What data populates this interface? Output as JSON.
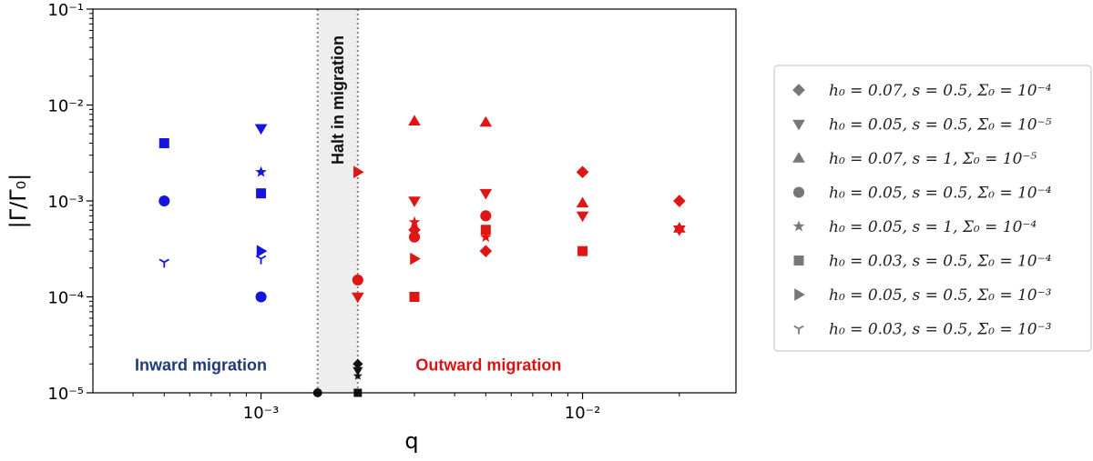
{
  "chart_data": {
    "type": "scatter",
    "xscale": "log",
    "yscale": "log",
    "xlim": [
      0.0003,
      0.03
    ],
    "ylim": [
      1e-05,
      0.1
    ],
    "xlabel": "q",
    "ylabel": "|Γ/Γ₀|",
    "x_ticks": [
      {
        "value": 0.001,
        "label": "10⁻³"
      },
      {
        "value": 0.01,
        "label": "10⁻²"
      }
    ],
    "y_ticks": [
      {
        "value": 1e-05,
        "label": "10⁻⁵"
      },
      {
        "value": 0.0001,
        "label": "10⁻⁴"
      },
      {
        "value": 0.001,
        "label": "10⁻³"
      },
      {
        "value": 0.01,
        "label": "10⁻²"
      },
      {
        "value": 0.1,
        "label": "10⁻¹"
      }
    ],
    "halt_band": {
      "x_from": 0.0015,
      "x_to": 0.002,
      "label": "Halt in migration",
      "color": "#eeeeee"
    },
    "annotations": [
      {
        "text": "Inward migration",
        "x": 0.00065,
        "y": 1.7e-05,
        "color": "#1f3a7a"
      },
      {
        "text": "Outward migration",
        "x": 0.0051,
        "y": 1.7e-05,
        "color": "#dd1111"
      }
    ],
    "colors": {
      "inward": "#1515e0",
      "outward": "#e01515",
      "halt": "#111111",
      "legend_marker": "#777777"
    },
    "legend_position": "right-outside",
    "series": [
      {
        "name": "h₀ = 0.07, s = 0.5, Σ₀ = 10⁻⁴",
        "marker": "diamond",
        "points": [
          {
            "x": 0.002,
            "y": 2e-05,
            "c": "halt"
          },
          {
            "x": 0.003,
            "y": 0.0005,
            "c": "outward"
          },
          {
            "x": 0.005,
            "y": 0.0003,
            "c": "outward"
          },
          {
            "x": 0.01,
            "y": 0.002,
            "c": "outward"
          },
          {
            "x": 0.02,
            "y": 0.001,
            "c": "outward"
          }
        ]
      },
      {
        "name": "h₀ = 0.05, s = 0.5, Σ₀ = 10⁻⁵",
        "marker": "triangle-down",
        "points": [
          {
            "x": 0.001,
            "y": 0.0057,
            "c": "inward"
          },
          {
            "x": 0.002,
            "y": 0.0001,
            "c": "outward"
          },
          {
            "x": 0.002,
            "y": 1.7e-05,
            "c": "halt"
          },
          {
            "x": 0.003,
            "y": 0.001,
            "c": "outward"
          },
          {
            "x": 0.005,
            "y": 0.0012,
            "c": "outward"
          },
          {
            "x": 0.01,
            "y": 0.0007,
            "c": "outward"
          },
          {
            "x": 0.02,
            "y": 0.0005,
            "c": "outward"
          }
        ]
      },
      {
        "name": "h₀ = 0.07, s = 1, Σ₀ = 10⁻⁵",
        "marker": "triangle-up",
        "points": [
          {
            "x": 0.003,
            "y": 0.0068,
            "c": "outward"
          },
          {
            "x": 0.005,
            "y": 0.0066,
            "c": "outward"
          },
          {
            "x": 0.01,
            "y": 0.00095,
            "c": "outward"
          },
          {
            "x": 0.02,
            "y": 0.00052,
            "c": "outward"
          }
        ]
      },
      {
        "name": "h₀ = 0.05, s = 0.5, Σ₀ = 10⁻⁴",
        "marker": "circle",
        "points": [
          {
            "x": 0.0005,
            "y": 0.001,
            "c": "inward"
          },
          {
            "x": 0.001,
            "y": 0.0001,
            "c": "inward"
          },
          {
            "x": 0.0015,
            "y": 1e-05,
            "c": "halt"
          },
          {
            "x": 0.002,
            "y": 0.00015,
            "c": "outward"
          },
          {
            "x": 0.003,
            "y": 0.00042,
            "c": "outward"
          },
          {
            "x": 0.005,
            "y": 0.0007,
            "c": "outward"
          }
        ]
      },
      {
        "name": "h₀ = 0.05, s = 1, Σ₀ = 10⁻⁴",
        "marker": "star",
        "points": [
          {
            "x": 0.001,
            "y": 0.002,
            "c": "inward"
          },
          {
            "x": 0.002,
            "y": 1.5e-05,
            "c": "halt"
          },
          {
            "x": 0.003,
            "y": 0.0006,
            "c": "outward"
          },
          {
            "x": 0.005,
            "y": 0.00042,
            "c": "outward"
          }
        ]
      },
      {
        "name": "h₀ = 0.03, s = 0.5, Σ₀ = 10⁻⁴",
        "marker": "square",
        "points": [
          {
            "x": 0.0005,
            "y": 0.004,
            "c": "inward"
          },
          {
            "x": 0.001,
            "y": 0.0012,
            "c": "inward"
          },
          {
            "x": 0.002,
            "y": 1e-05,
            "c": "halt"
          },
          {
            "x": 0.003,
            "y": 0.0001,
            "c": "outward"
          },
          {
            "x": 0.005,
            "y": 0.0005,
            "c": "outward"
          },
          {
            "x": 0.01,
            "y": 0.0003,
            "c": "outward"
          }
        ]
      },
      {
        "name": "h₀ = 0.05, s = 0.5, Σ₀ = 10⁻³",
        "marker": "triangle-right",
        "points": [
          {
            "x": 0.001,
            "y": 0.0003,
            "c": "inward"
          },
          {
            "x": 0.002,
            "y": 0.002,
            "c": "outward"
          },
          {
            "x": 0.003,
            "y": 0.00025,
            "c": "outward"
          }
        ]
      },
      {
        "name": "h₀ = 0.03, s = 0.5, Σ₀ = 10⁻³",
        "marker": "tri-down",
        "points": [
          {
            "x": 0.0005,
            "y": 0.00023,
            "c": "inward"
          },
          {
            "x": 0.001,
            "y": 0.00025,
            "c": "inward"
          }
        ]
      }
    ]
  }
}
